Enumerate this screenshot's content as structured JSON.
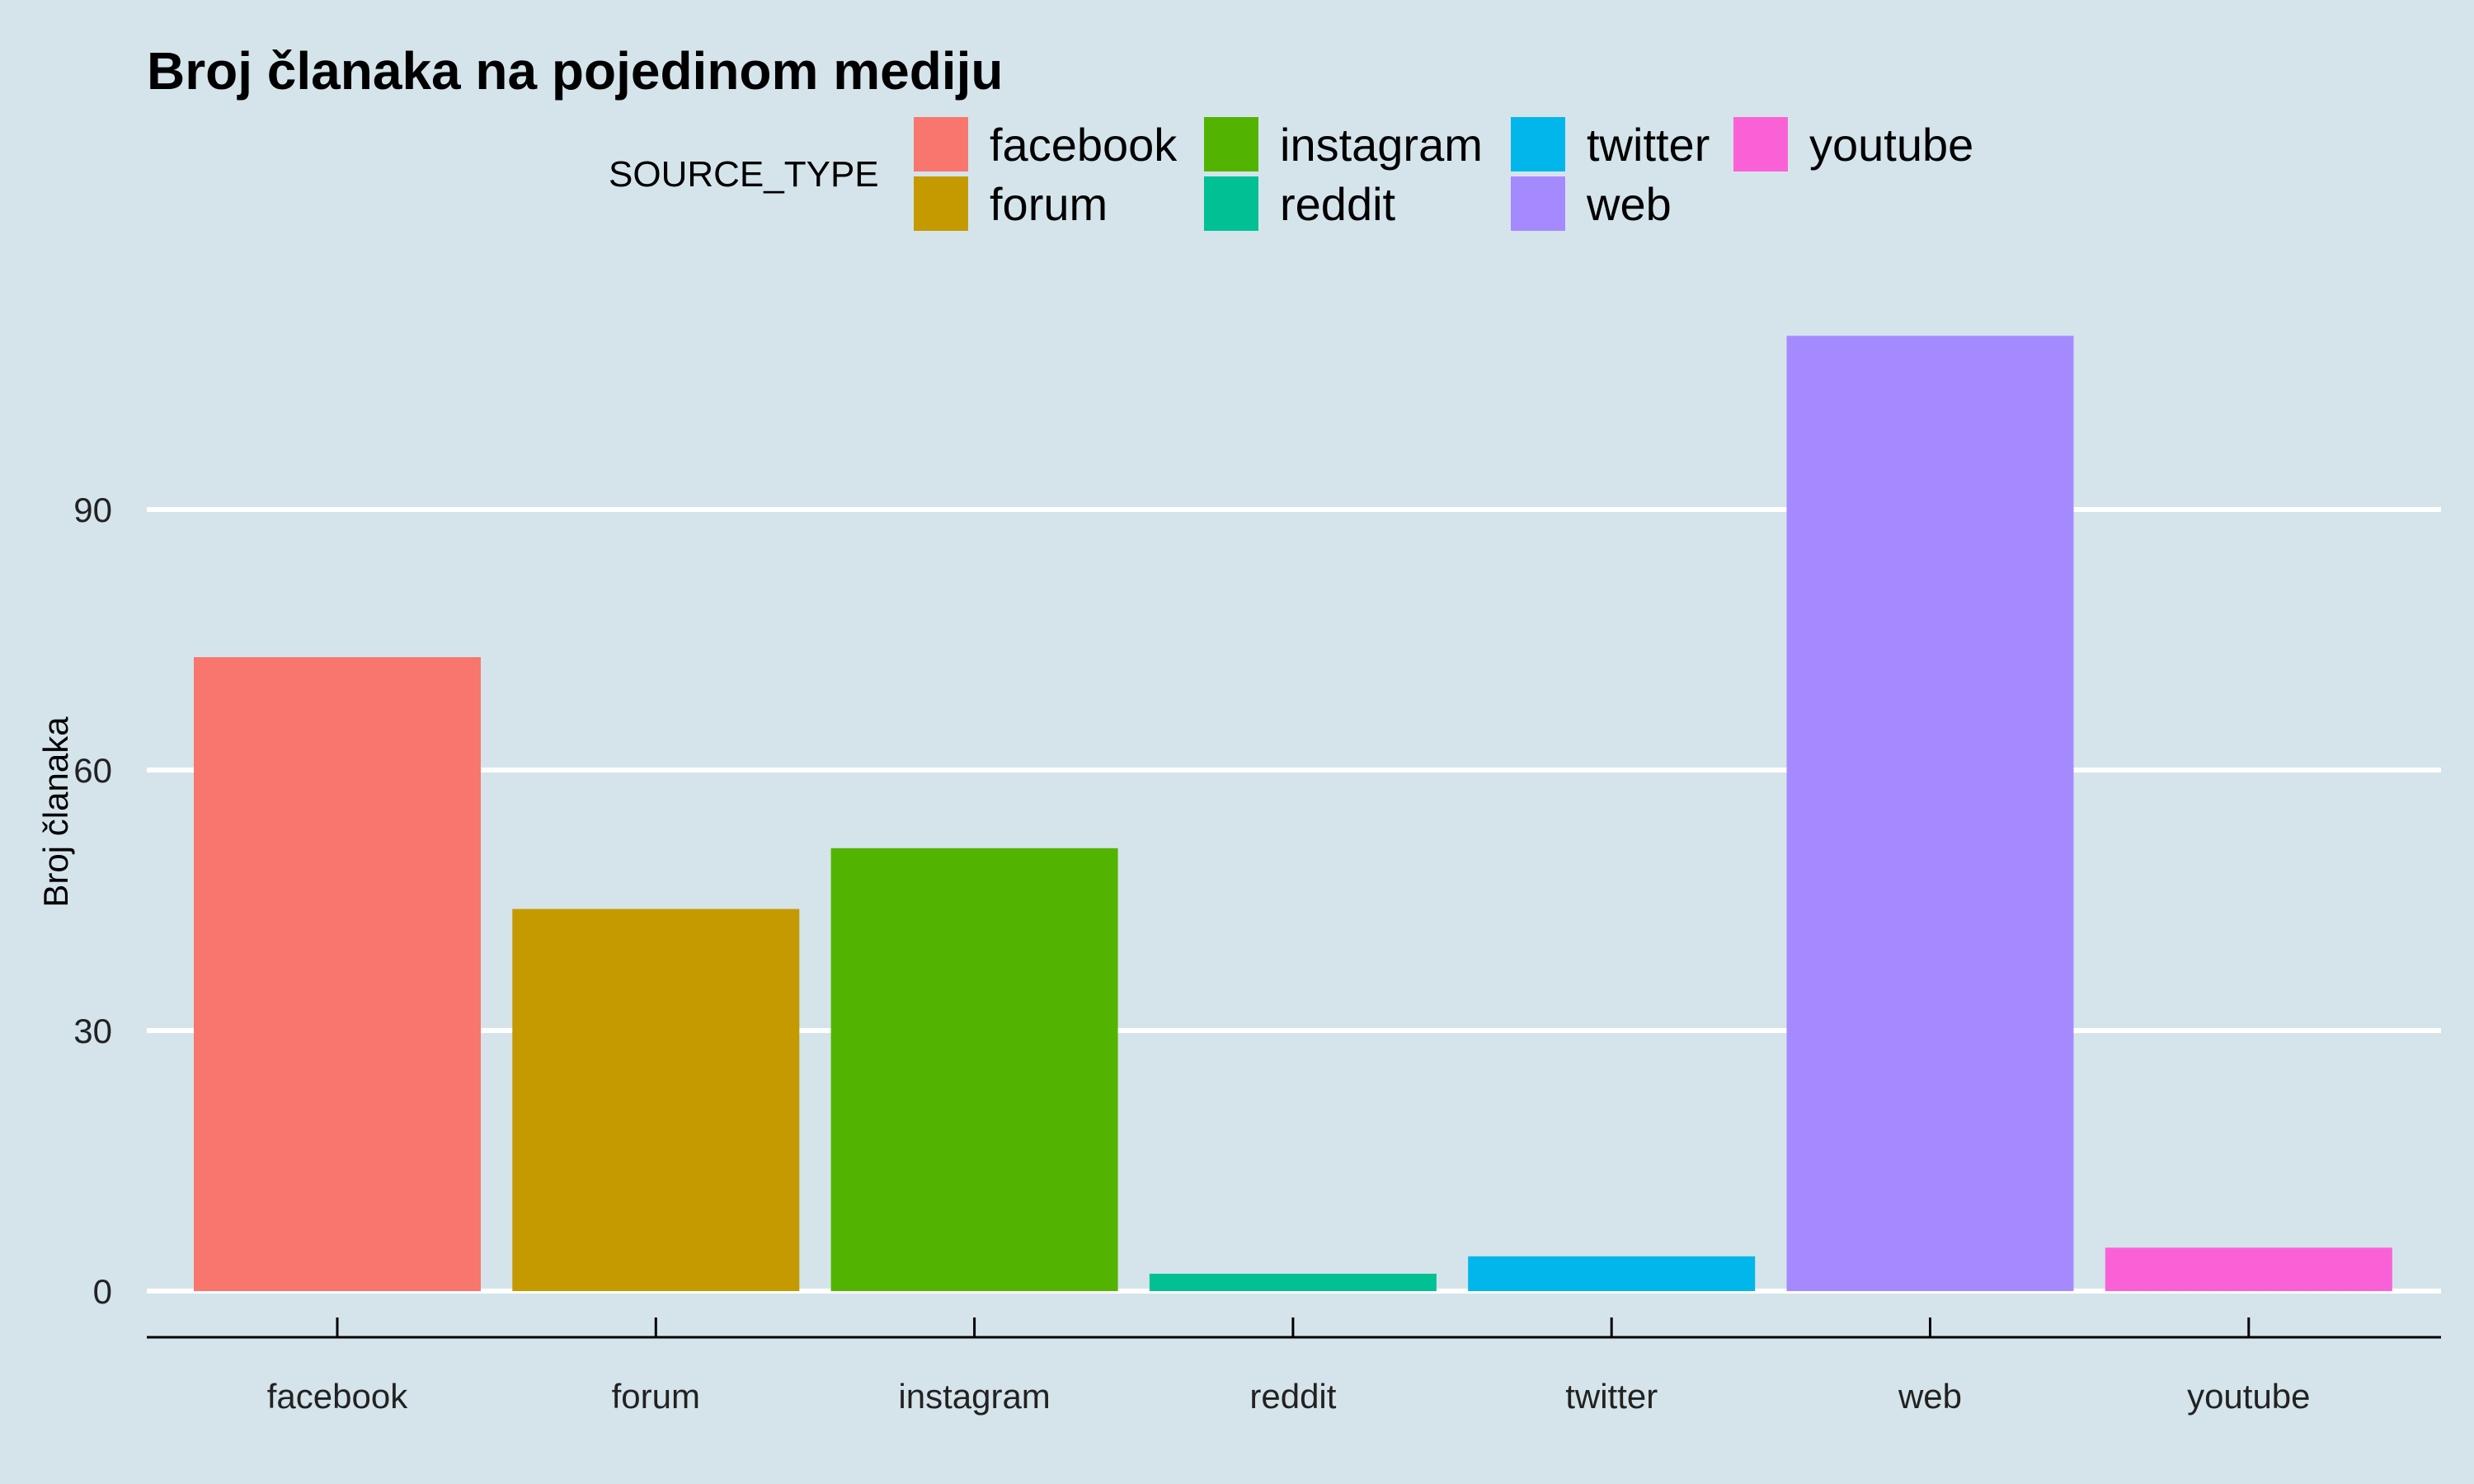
{
  "chart_data": {
    "type": "bar",
    "title": "Broj članaka na pojedinom mediju",
    "xlabel": "",
    "ylabel": "Broj članaka",
    "categories": [
      "facebook",
      "forum",
      "instagram",
      "reddit",
      "twitter",
      "web",
      "youtube"
    ],
    "values": [
      73,
      44,
      51,
      2,
      4,
      110,
      5
    ],
    "colors": [
      "#f8766d",
      "#c49a00",
      "#53b400",
      "#00c094",
      "#00b6eb",
      "#a58aff",
      "#fb61d7"
    ],
    "ylim": [
      0,
      116
    ],
    "yticks": [
      0,
      30,
      60,
      90
    ],
    "grid": true,
    "legend": {
      "title": "SOURCE_TYPE",
      "placement": "top",
      "items": [
        "facebook",
        "forum",
        "instagram",
        "reddit",
        "twitter",
        "web",
        "youtube"
      ]
    }
  }
}
